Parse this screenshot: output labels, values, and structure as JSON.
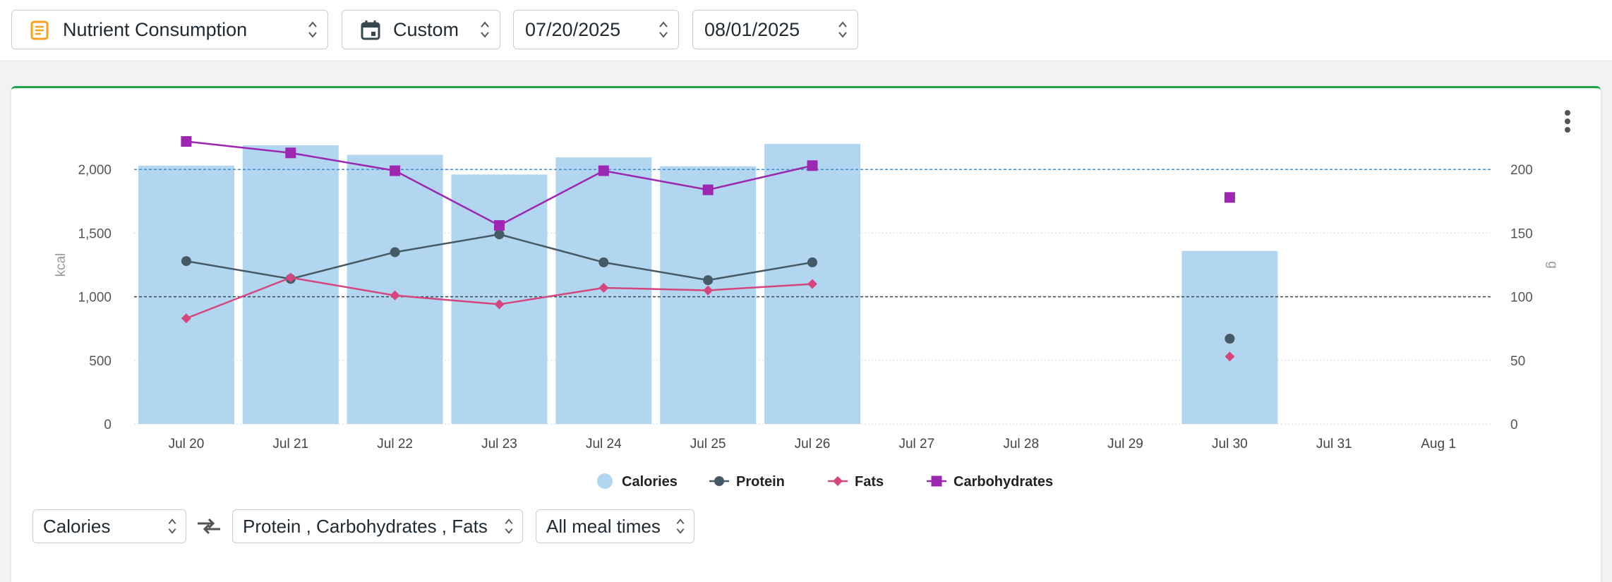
{
  "toolbar": {
    "report_select": {
      "label": "Nutrient Consumption",
      "icon": "report-icon"
    },
    "range_select": {
      "label": "Custom",
      "icon": "calendar-icon"
    },
    "start_date": "07/20/2025",
    "end_date": "08/01/2025"
  },
  "controls": {
    "primary_metric": "Calories",
    "swap_icon": "swap-icon",
    "secondary_metrics": "Protein , Carbohydrates , Fats",
    "meal_times": "All meal times"
  },
  "colors": {
    "accent_green": "#22a546",
    "calories": "#b3d6f0",
    "protein": "#455a64",
    "fats": "#d4467e",
    "carbohydrates": "#9c27b0",
    "ref_line_kcal": "#3d8fd1",
    "ref_line_g": "#37474f"
  },
  "chart_data": {
    "type": "bar",
    "categories": [
      "Jul 20",
      "Jul 21",
      "Jul 22",
      "Jul 23",
      "Jul 24",
      "Jul 25",
      "Jul 26",
      "Jul 27",
      "Jul 28",
      "Jul 29",
      "Jul 30",
      "Jul 31",
      "Aug 1"
    ],
    "ylabel": "kcal",
    "y2label": "g",
    "ylim": [
      0,
      2500
    ],
    "y2lim": [
      0,
      250
    ],
    "yticks": [
      "0",
      "500",
      "1,000",
      "1,500",
      "2,000"
    ],
    "y2ticks": [
      "0",
      "50",
      "100",
      "150",
      "200"
    ],
    "grid": true,
    "legend_position": "bottom",
    "reference_lines": [
      {
        "axis": "left",
        "value": 2000
      },
      {
        "axis": "right",
        "value": 100
      }
    ],
    "series": [
      {
        "name": "Calories",
        "type": "bar",
        "axis": "left",
        "values": [
          2030,
          2190,
          2115,
          1960,
          2095,
          2025,
          2200,
          null,
          null,
          null,
          1360,
          null,
          null
        ]
      },
      {
        "name": "Protein",
        "type": "line",
        "axis": "right",
        "marker": "circle",
        "values": [
          128,
          114,
          135,
          149,
          127,
          113,
          127,
          null,
          null,
          null,
          67,
          null,
          null
        ]
      },
      {
        "name": "Fats",
        "type": "line",
        "axis": "right",
        "marker": "diamond",
        "values": [
          83,
          115,
          101,
          94,
          107,
          105,
          110,
          null,
          null,
          null,
          53,
          null,
          null
        ]
      },
      {
        "name": "Carbohydrates",
        "type": "line",
        "axis": "right",
        "marker": "square",
        "values": [
          222,
          213,
          199,
          156,
          199,
          184,
          203,
          null,
          null,
          null,
          178,
          null,
          null
        ]
      }
    ]
  }
}
